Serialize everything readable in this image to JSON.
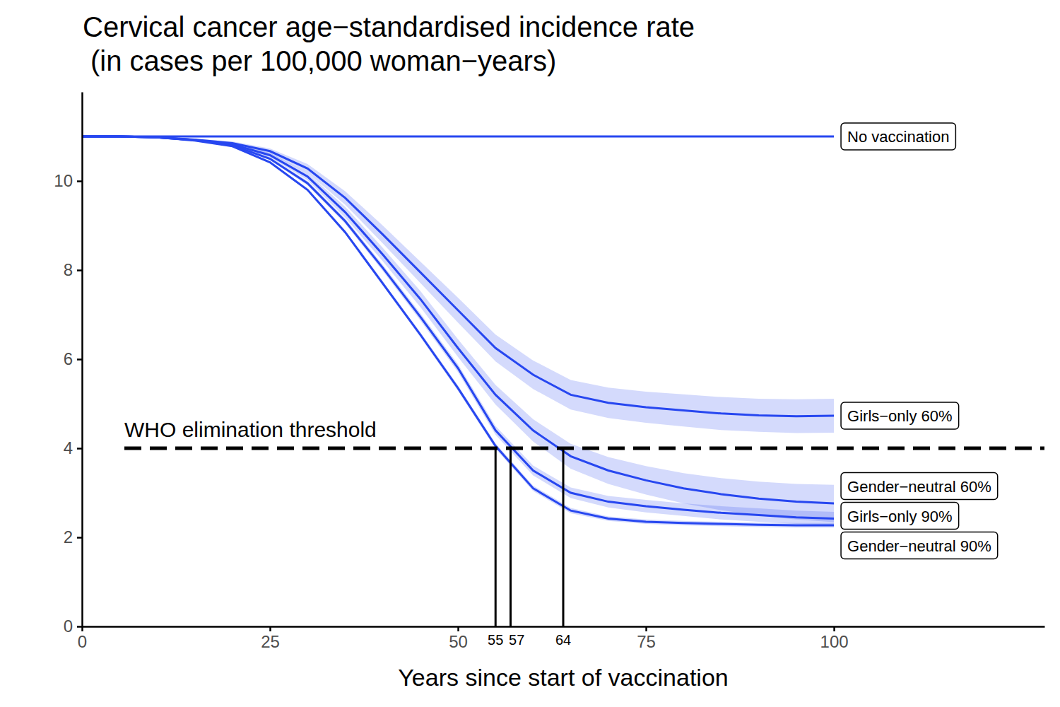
{
  "chart_data": {
    "type": "line",
    "title": "Cervical cancer age−standardised incidence rate",
    "subtitle": "(in cases per 100,000 woman−years)",
    "x_label": "Years since start of vaccination",
    "x": [
      0,
      5,
      10,
      15,
      20,
      25,
      30,
      35,
      40,
      45,
      50,
      55,
      60,
      65,
      70,
      75,
      80,
      85,
      90,
      95,
      100
    ],
    "xlim": [
      0,
      128
    ],
    "xticks": [
      0,
      25,
      50,
      75,
      100
    ],
    "ylim": [
      0,
      12
    ],
    "yticks": [
      0,
      2,
      4,
      6,
      8,
      10
    ],
    "grid": false,
    "threshold": {
      "value": 4,
      "label": "WHO elimination threshold"
    },
    "crossings": [
      55,
      57,
      64
    ],
    "series": [
      {
        "name": "No vaccination",
        "color": "#2747f0",
        "values": [
          11,
          11,
          11,
          11,
          11,
          11,
          11,
          11,
          11,
          11,
          11,
          11,
          11,
          11,
          11,
          11,
          11,
          11,
          11,
          11,
          11
        ]
      },
      {
        "name": "Girls−only 60%",
        "color": "#2747f0",
        "values": [
          11,
          11,
          10.98,
          10.93,
          10.85,
          10.67,
          10.28,
          9.62,
          8.8,
          7.95,
          7.1,
          6.25,
          5.65,
          5.2,
          5.02,
          4.92,
          4.85,
          4.78,
          4.74,
          4.72,
          4.73
        ],
        "lower": [
          11,
          11,
          10.98,
          10.91,
          10.81,
          10.61,
          10.18,
          9.47,
          8.6,
          7.71,
          6.82,
          5.95,
          5.33,
          4.87,
          4.68,
          4.57,
          4.49,
          4.41,
          4.37,
          4.34,
          4.35
        ],
        "upper": [
          11,
          11,
          10.98,
          10.95,
          10.89,
          10.73,
          10.38,
          9.77,
          9.0,
          8.19,
          7.38,
          6.55,
          5.97,
          5.53,
          5.36,
          5.27,
          5.21,
          5.15,
          5.11,
          5.1,
          5.11
        ]
      },
      {
        "name": "Gender−neutral 60%",
        "color": "#2747f0",
        "values": [
          11,
          11,
          10.98,
          10.92,
          10.82,
          10.58,
          10.1,
          9.3,
          8.35,
          7.35,
          6.25,
          5.2,
          4.4,
          3.82,
          3.5,
          3.28,
          3.1,
          2.97,
          2.87,
          2.8,
          2.76
        ],
        "lower": [
          11,
          11,
          10.98,
          10.9,
          10.79,
          10.53,
          10.02,
          9.18,
          8.2,
          7.17,
          6.05,
          4.98,
          4.15,
          3.54,
          3.2,
          2.96,
          2.76,
          2.61,
          2.49,
          2.4,
          2.34
        ],
        "upper": [
          11,
          11,
          10.98,
          10.94,
          10.85,
          10.63,
          10.18,
          9.42,
          8.5,
          7.53,
          6.45,
          5.42,
          4.65,
          4.1,
          3.8,
          3.6,
          3.44,
          3.33,
          3.25,
          3.2,
          3.18
        ]
      },
      {
        "name": "Girls−only 90%",
        "color": "#2747f0",
        "values": [
          11,
          11,
          10.98,
          10.92,
          10.8,
          10.5,
          9.95,
          9.1,
          8.05,
          6.95,
          5.8,
          4.4,
          3.5,
          3.0,
          2.8,
          2.7,
          2.62,
          2.55,
          2.5,
          2.45,
          2.42
        ],
        "lower": [
          11,
          11,
          10.98,
          10.91,
          10.78,
          10.47,
          9.9,
          9.04,
          7.98,
          6.87,
          5.71,
          4.3,
          3.39,
          2.88,
          2.67,
          2.56,
          2.48,
          2.4,
          2.35,
          2.3,
          2.27
        ],
        "upper": [
          11,
          11,
          10.98,
          10.93,
          10.82,
          10.53,
          10.0,
          9.16,
          8.12,
          7.03,
          5.89,
          4.5,
          3.61,
          3.12,
          2.93,
          2.84,
          2.76,
          2.7,
          2.65,
          2.6,
          2.57
        ]
      },
      {
        "name": "Gender−neutral 90%",
        "color": "#2747f0",
        "values": [
          11,
          11,
          10.98,
          10.91,
          10.78,
          10.42,
          9.8,
          8.85,
          7.7,
          6.55,
          5.35,
          4.05,
          3.1,
          2.6,
          2.42,
          2.35,
          2.32,
          2.3,
          2.28,
          2.27,
          2.27
        ],
        "lower": [
          11,
          11,
          10.98,
          10.9,
          10.77,
          10.4,
          9.77,
          8.81,
          7.65,
          6.5,
          5.29,
          3.99,
          3.04,
          2.54,
          2.37,
          2.3,
          2.27,
          2.25,
          2.23,
          2.22,
          2.22
        ],
        "upper": [
          11,
          11,
          10.98,
          10.92,
          10.79,
          10.44,
          9.83,
          8.89,
          7.75,
          6.6,
          5.41,
          4.11,
          3.16,
          2.66,
          2.47,
          2.4,
          2.37,
          2.35,
          2.33,
          2.32,
          2.32
        ]
      }
    ]
  }
}
